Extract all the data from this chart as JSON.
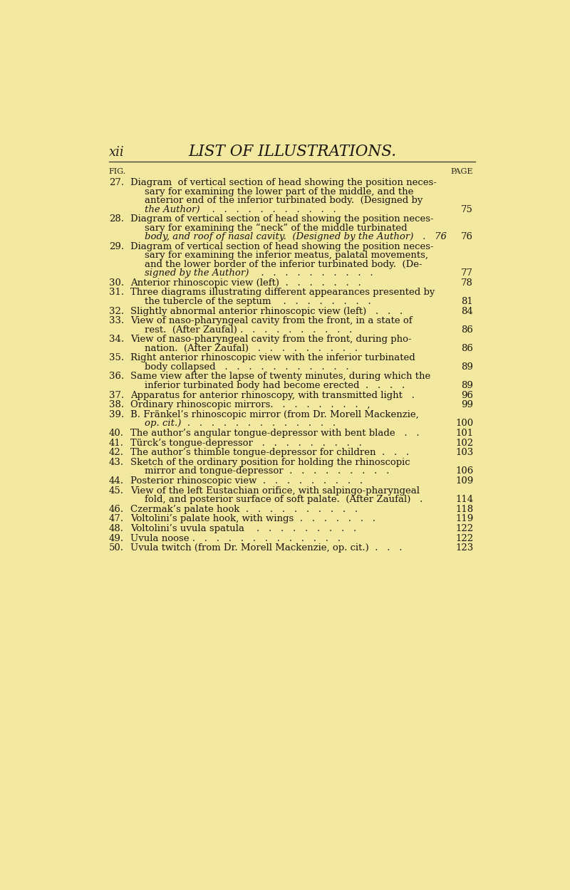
{
  "bg_color": "#f2e8a0",
  "title_left": "xii",
  "title_center": "LIST OF ILLUSTRATIONS.",
  "col_fig": "FIG.",
  "col_page": "PAGE",
  "entries": [
    {
      "num": "27.",
      "text_lines": [
        {
          "text": "Diagram  of vertical section of head showing the position neces-",
          "italic": false
        },
        {
          "text": "sary for examining the lower part of the middle, and the",
          "italic": false
        },
        {
          "text": "anterior end of the inferior turbinated body.  (Designed by",
          "italic": false
        },
        {
          "text": "the Author)    .   .   .   .   .   .   .   .   .   .   .",
          "italic": true
        }
      ],
      "page": "75"
    },
    {
      "num": "28.",
      "text_lines": [
        {
          "text": "Diagram of vertical section of head showing the position neces-",
          "italic": false
        },
        {
          "text": "sary for examining the “neck” of the middle turbinated",
          "italic": false
        },
        {
          "text": "body, and roof of nasal cavity.  (Designed by the Author)   .   76",
          "italic": true
        }
      ],
      "page": "76"
    },
    {
      "num": "29.",
      "text_lines": [
        {
          "text": "Diagram of vertical section of head showing the position neces-",
          "italic": false
        },
        {
          "text": "sary for examining the inferior meatus, palatal movements,",
          "italic": false
        },
        {
          "text": "and the lower border of the inferior turbinated body.  (De-",
          "italic": false
        },
        {
          "text": "signed by the Author)    .   .   .   .   .   .   .   .   .   .",
          "italic": true
        }
      ],
      "page": "77"
    },
    {
      "num": "30.",
      "text_lines": [
        {
          "text": "Anterior rhinoscopic view (left)  .   .   .   .   .   .   .",
          "italic": false
        }
      ],
      "page": "78"
    },
    {
      "num": "31.",
      "text_lines": [
        {
          "text": "Three diagrams illustrating different appearances presented by",
          "italic": false
        },
        {
          "text": "the tubercle of the septum    .   .   .   .   .   .   .   .",
          "italic": false
        }
      ],
      "page": "81"
    },
    {
      "num": "32.",
      "text_lines": [
        {
          "text": "Slightly abnormal anterior rhinoscopic view (left)   .   .   .",
          "italic": false
        }
      ],
      "page": "84"
    },
    {
      "num": "33.",
      "text_lines": [
        {
          "text": "View of naso-pharyngeal cavity from the front, in a state of",
          "italic": false
        },
        {
          "text": "rest.  (After Zaufal) .   .   .   .   .   .   .   .   .   .",
          "italic": false
        }
      ],
      "page": "86"
    },
    {
      "num": "34.",
      "text_lines": [
        {
          "text": "View of naso-pharyngeal cavity from the front, during pho-",
          "italic": false
        },
        {
          "text": "nation.  (After Zaufal)   .   .   .   .   .   .   .   .   .",
          "italic": false
        }
      ],
      "page": "86"
    },
    {
      "num": "35.",
      "text_lines": [
        {
          "text": "Right anterior rhinoscopic view with the inferior turbinated",
          "italic": false
        },
        {
          "text": "body collapsed   .   .   .   .   .   .   .   .   .   .   .",
          "italic": false
        }
      ],
      "page": "89"
    },
    {
      "num": "36.",
      "text_lines": [
        {
          "text": "Same view after the lapse of twenty minutes, during which the",
          "italic": false
        },
        {
          "text": "inferior turbinated body had become erected  .   .   .   .",
          "italic": false
        }
      ],
      "page": "89"
    },
    {
      "num": "37.",
      "text_lines": [
        {
          "text": "Apparatus for anterior rhinoscopy, with transmitted light   .",
          "italic": false
        }
      ],
      "page": "96"
    },
    {
      "num": "38.",
      "text_lines": [
        {
          "text": "Ordinary rhinoscopic mirrors.   .   .   .   .   .   .   .   ,",
          "italic": false
        }
      ],
      "page": "99"
    },
    {
      "num": "39.",
      "text_lines": [
        {
          "text": "B. Fränkel’s rhinoscopic mirror (from Dr. Morell Mackenzie,",
          "italic": false
        },
        {
          "text": "op. cit.)  .   .   .   .   .   .   .   .   .   .   .   .   .",
          "italic": true
        }
      ],
      "page": "100"
    },
    {
      "num": "40.",
      "text_lines": [
        {
          "text": "The author’s angular tongue-depressor with bent blade   .   .",
          "italic": false
        }
      ],
      "page": "101"
    },
    {
      "num": "41.",
      "text_lines": [
        {
          "text": "Türck’s tongue‐depressor   .   .   .   .   .   .   .   .   .",
          "italic": false
        }
      ],
      "page": "102"
    },
    {
      "num": "42.",
      "text_lines": [
        {
          "text": "The author’s thimble tongue‐depressor for children  .   .   .",
          "italic": false
        }
      ],
      "page": "103"
    },
    {
      "num": "43.",
      "text_lines": [
        {
          "text": "Sketch of the ordinary position for holding the rhinoscopic",
          "italic": false
        },
        {
          "text": "mirror and tongue-depressor  .   .   .   .   .   .   .   .   .",
          "italic": false
        }
      ],
      "page": "106"
    },
    {
      "num": "44.",
      "text_lines": [
        {
          "text": "Posterior rhinoscopic view  .   .   .   .   .   .   .   .   .",
          "italic": false
        }
      ],
      "page": "109"
    },
    {
      "num": "45.",
      "text_lines": [
        {
          "text": "View of the left Eustachian orifice, with salpingo-pharyngeal",
          "italic": false
        },
        {
          "text": "fold, and posterior surface of soft palate.  (After Zaufal)   .",
          "italic": false
        }
      ],
      "page": "114"
    },
    {
      "num": "46.",
      "text_lines": [
        {
          "text": "Czermak’s palate hook  .   .   .   .   .   .   .   .   .   .",
          "italic": false
        }
      ],
      "page": "118"
    },
    {
      "num": "47.",
      "text_lines": [
        {
          "text": "Voltolini’s palate hook, with wings  .   .   .   .   .   .   .",
          "italic": false
        }
      ],
      "page": "119"
    },
    {
      "num": "48.",
      "text_lines": [
        {
          "text": "Voltolini’s uvula spatula    .   .   .   .   .   .   .   .   .",
          "italic": false
        }
      ],
      "page": "122"
    },
    {
      "num": "49.",
      "text_lines": [
        {
          "text": "Uvula noose .   .   .   .   .   .   .   .   .   .   .   .   .",
          "italic": false
        }
      ],
      "page": "122"
    },
    {
      "num": "50.",
      "text_lines": [
        {
          "text": "Uvula twitch (from Dr. Morell Mackenzie, op. cit.)  .   .   .",
          "italic": false
        }
      ],
      "page": "123"
    }
  ]
}
